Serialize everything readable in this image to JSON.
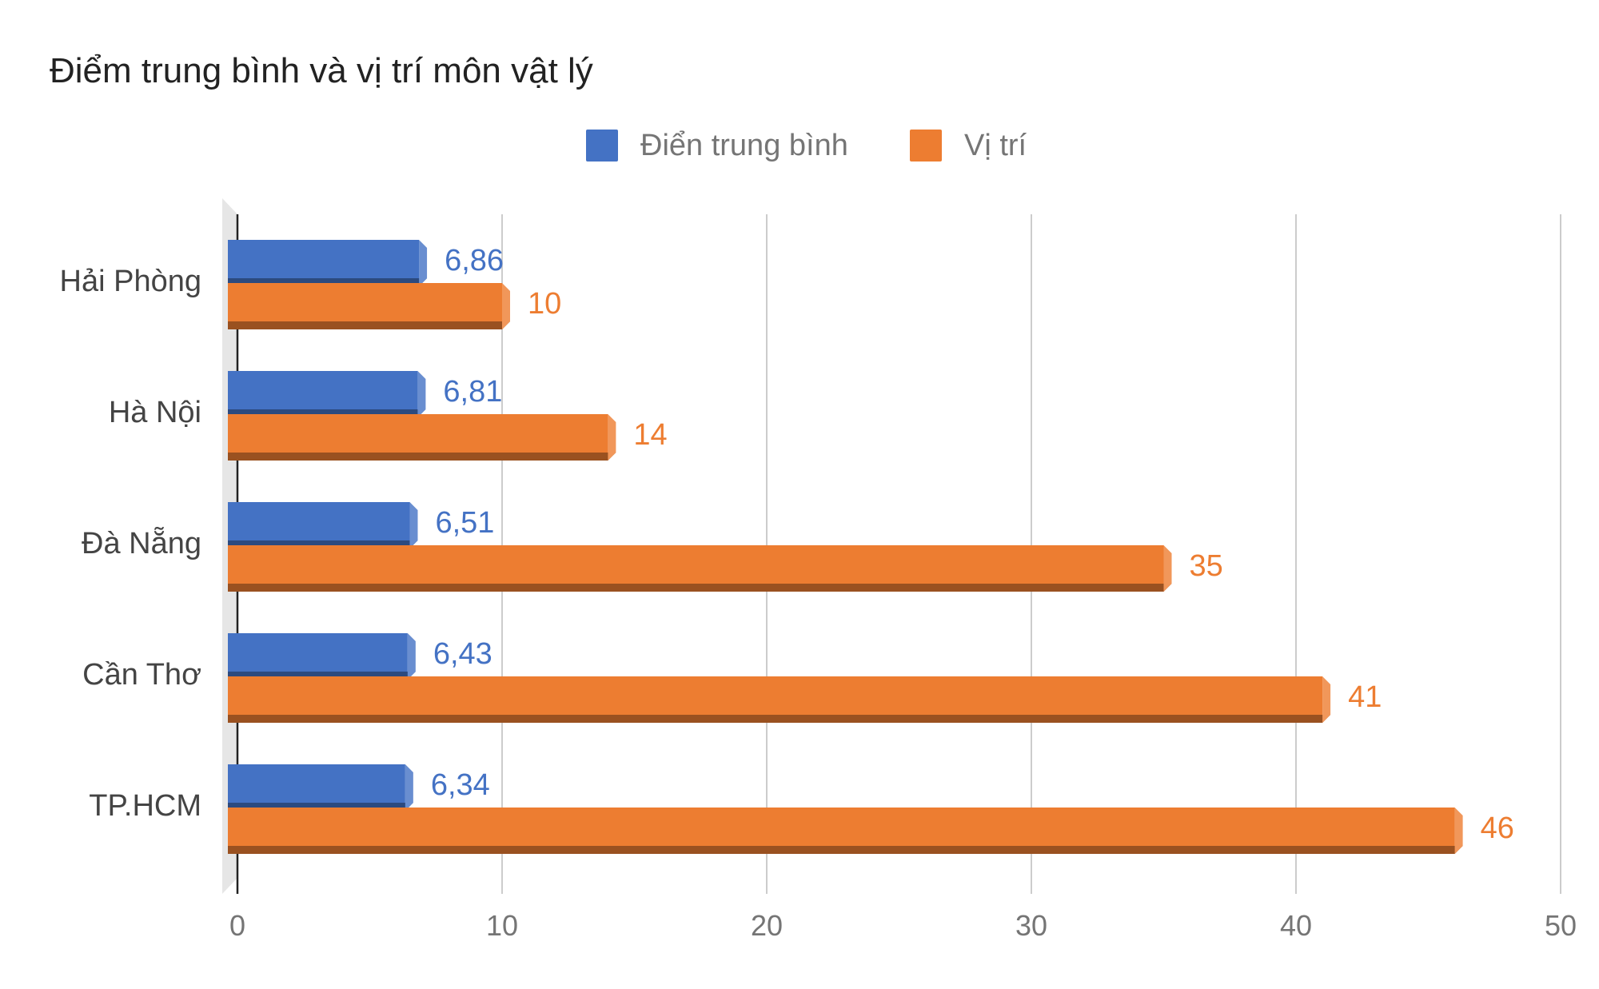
{
  "chart_data": {
    "type": "bar",
    "orientation": "horizontal",
    "title": "Điểm trung bình và vị trí môn vật lý",
    "categories": [
      "Hải Phòng",
      "Hà Nội",
      "Đà Nẵng",
      "Cần Thơ",
      "TP.HCM"
    ],
    "series": [
      {
        "name": "Điển trung bình",
        "color": "#4472C4",
        "values": [
          6.86,
          6.81,
          6.51,
          6.43,
          6.34
        ],
        "labels": [
          "6,86",
          "6,81",
          "6,51",
          "6,43",
          "6,34"
        ]
      },
      {
        "name": "Vị trí",
        "color": "#ED7D31",
        "values": [
          10,
          14,
          35,
          41,
          46
        ],
        "labels": [
          "10",
          "14",
          "35",
          "41",
          "46"
        ]
      }
    ],
    "xlim": [
      0,
      50
    ],
    "xticks": [
      "0",
      "10",
      "20",
      "30",
      "40",
      "50"
    ],
    "xlabel": "",
    "ylabel": "",
    "grid": true,
    "legend_position": "top"
  }
}
